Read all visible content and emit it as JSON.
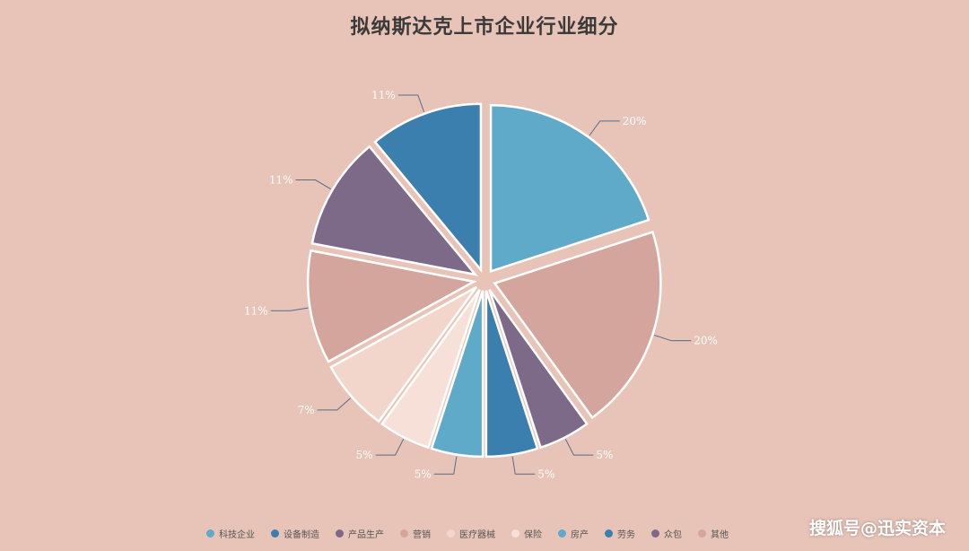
{
  "chart_data": {
    "type": "pie",
    "title": "拟纳斯达克上市企业行业细分",
    "categories": [
      "科技企业",
      "设备制造",
      "产品生产",
      "营销",
      "医疗器械",
      "保险",
      "房产",
      "劳务",
      "众包",
      "其他"
    ],
    "values": [
      20,
      20,
      5,
      5,
      5,
      5,
      7,
      11,
      11,
      11
    ],
    "slices": [
      {
        "label": "20%",
        "value": 20,
        "color": "#5fa9c9"
      },
      {
        "label": "20%",
        "value": 20,
        "color": "#d4a59c"
      },
      {
        "label": "5%",
        "value": 5,
        "color": "#7c6a88"
      },
      {
        "label": "5%",
        "value": 5,
        "color": "#3a7fae"
      },
      {
        "label": "5%",
        "value": 5,
        "color": "#5fa9c9"
      },
      {
        "label": "5%",
        "value": 5,
        "color": "#f6e0d8"
      },
      {
        "label": "7%",
        "value": 7,
        "color": "#f2d6cc"
      },
      {
        "label": "11%",
        "value": 11,
        "color": "#d4a59c"
      },
      {
        "label": "11%",
        "value": 11,
        "color": "#7c6a88"
      },
      {
        "label": "11%",
        "value": 11,
        "color": "#3a7fae"
      }
    ],
    "legend": [
      {
        "label": "科技企业",
        "color": "#5fa9c9"
      },
      {
        "label": "设备制造",
        "color": "#3a7fae"
      },
      {
        "label": "产品生产",
        "color": "#7c6a88"
      },
      {
        "label": "营销",
        "color": "#d4a59c"
      },
      {
        "label": "医疗器械",
        "color": "#f2d6cc"
      },
      {
        "label": "保险",
        "color": "#f6e0d8"
      },
      {
        "label": "房产",
        "color": "#5fa9c9"
      },
      {
        "label": "劳务",
        "color": "#3a7fae"
      },
      {
        "label": "众包",
        "color": "#7c6a88"
      },
      {
        "label": "其他",
        "color": "#d4a59c"
      }
    ],
    "legend_position": "bottom"
  },
  "watermark": "搜狐号@迅实资本",
  "colors": {
    "background": "#e8c4b8",
    "label_line": "#5a6a88",
    "label_text": "#ffffff"
  }
}
